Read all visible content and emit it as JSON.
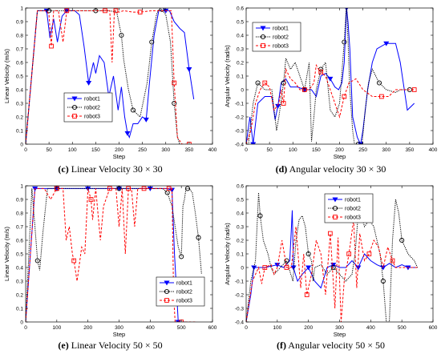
{
  "captions": [
    {
      "letter": "(c)",
      "text": "Linear Velocity 30 × 30"
    },
    {
      "letter": "(d)",
      "text": "Angular velocity 30 × 30"
    },
    {
      "letter": "(e)",
      "text": "Linear Velocity 50 × 50"
    },
    {
      "letter": "(f)",
      "text": "Angular velocity 50 × 50"
    }
  ],
  "series_styles": [
    {
      "name": "robot1",
      "color": "#0000ff",
      "marker": "triangle-down",
      "dash": "solid"
    },
    {
      "name": "robot2",
      "color": "#000000",
      "marker": "circle",
      "dash": "dotted"
    },
    {
      "name": "robot3",
      "color": "#ff0000",
      "marker": "square",
      "dash": "dashed"
    }
  ],
  "chart_data": [
    {
      "type": "line",
      "title": "",
      "xlabel": "Step",
      "ylabel": "Linear Velocity (m/s)",
      "xlim": [
        0,
        400
      ],
      "ylim": [
        0,
        1
      ],
      "xticks": [
        0,
        50,
        100,
        150,
        200,
        250,
        300,
        350,
        400
      ],
      "yticks": [
        0,
        0.1,
        0.2,
        0.3,
        0.4,
        0.5,
        0.6,
        0.7,
        0.8,
        0.9,
        1
      ],
      "legend": "bottom-left",
      "series": [
        {
          "name": "robot1",
          "x": [
            0,
            25,
            45,
            52,
            60,
            68,
            78,
            88,
            98,
            105,
            115,
            125,
            135,
            145,
            150,
            158,
            168,
            178,
            188,
            198,
            205,
            212,
            218,
            222,
            230,
            240,
            250,
            258,
            265,
            275,
            285,
            290,
            300,
            308,
            318,
            330,
            340,
            350,
            360
          ],
          "y": [
            0,
            0.98,
            0.98,
            0.78,
            0.92,
            0.75,
            0.94,
            0.98,
            0.98,
            0.98,
            0.95,
            0.72,
            0.45,
            0.6,
            0.52,
            0.65,
            0.6,
            0.35,
            0.5,
            0.25,
            0.42,
            0.2,
            0.08,
            0.05,
            0.15,
            0.15,
            0.2,
            0.18,
            0.45,
            0.8,
            0.98,
            0.98,
            0.98,
            0.98,
            0.9,
            0.85,
            0.82,
            0.55,
            0.33
          ]
        },
        {
          "name": "robot2",
          "x": [
            0,
            25,
            50,
            80,
            110,
            150,
            180,
            195,
            205,
            210,
            220,
            230,
            245,
            260,
            270,
            280,
            285,
            292,
            300,
            310,
            318,
            325,
            330
          ],
          "y": [
            0,
            0.98,
            0.98,
            0.98,
            0.98,
            0.98,
            0.98,
            0.97,
            0.8,
            0.62,
            0.4,
            0.25,
            0.2,
            0.45,
            0.75,
            0.95,
            0.99,
            0.99,
            0.95,
            0.75,
            0.3,
            0.05,
            0
          ]
        },
        {
          "name": "robot3",
          "x": [
            0,
            25,
            45,
            50,
            55,
            60,
            70,
            80,
            88,
            95,
            110,
            140,
            170,
            180,
            185,
            190,
            193,
            200,
            210,
            230,
            245,
            270,
            300,
            312,
            318,
            325,
            335,
            345,
            350
          ],
          "y": [
            0,
            0.98,
            0.98,
            0.95,
            0.72,
            0.98,
            0.98,
            0.75,
            0.98,
            0.98,
            0.98,
            0.98,
            0.98,
            0.98,
            0.6,
            0.98,
            0.98,
            0.97,
            0.98,
            0.97,
            0.97,
            0.98,
            0.98,
            0.98,
            0.45,
            0.05,
            0,
            0,
            0
          ]
        }
      ]
    },
    {
      "type": "line",
      "title": "",
      "xlabel": "Step",
      "ylabel": "Angular Velocity (rad/s)",
      "xlim": [
        0,
        400
      ],
      "ylim": [
        -0.4,
        0.6
      ],
      "xticks": [
        0,
        50,
        100,
        150,
        200,
        250,
        300,
        350,
        400
      ],
      "yticks": [
        -0.4,
        -0.3,
        -0.2,
        -0.1,
        0,
        0.1,
        0.2,
        0.3,
        0.4,
        0.5,
        0.6
      ],
      "legend": "top-left",
      "series": [
        {
          "name": "robot1",
          "x": [
            0,
            8,
            15,
            25,
            40,
            55,
            62,
            68,
            75,
            85,
            95,
            110,
            125,
            140,
            150,
            160,
            170,
            180,
            190,
            198,
            205,
            210,
            215,
            218,
            222,
            228,
            238,
            245,
            250,
            260,
            270,
            280,
            300,
            320,
            330,
            345,
            360
          ],
          "y": [
            -0.4,
            -0.2,
            -0.4,
            -0.1,
            -0.05,
            -0.05,
            -0.22,
            -0.12,
            0.05,
            0.08,
            0.02,
            0.02,
            0.0,
            0.0,
            -0.05,
            0.1,
            0.12,
            0.08,
            0.02,
            0.0,
            0.05,
            0.2,
            0.6,
            0.5,
            0.3,
            -0.2,
            -0.35,
            -0.4,
            -0.3,
            0.0,
            0.2,
            0.3,
            0.34,
            0.34,
            0.2,
            -0.15,
            -0.1
          ]
        },
        {
          "name": "robot2",
          "x": [
            0,
            5,
            15,
            25,
            40,
            55,
            65,
            70,
            80,
            85,
            95,
            105,
            115,
            125,
            135,
            140,
            145,
            150,
            160,
            170,
            180,
            190,
            200,
            210,
            215,
            222,
            228,
            232,
            240,
            248,
            255,
            262,
            270,
            285,
            300,
            320,
            330,
            340,
            350
          ],
          "y": [
            -0.4,
            -0.4,
            -0.1,
            0.05,
            0.0,
            0.0,
            -0.3,
            -0.2,
            0.05,
            0.23,
            0.15,
            0.2,
            0.1,
            0.0,
            0.2,
            -0.38,
            -0.2,
            0.0,
            0.15,
            0.2,
            -0.15,
            -0.2,
            -0.1,
            0.35,
            0.65,
            0.0,
            -0.3,
            -0.4,
            -0.4,
            -0.4,
            -0.15,
            0.05,
            0.15,
            0.05,
            0.0,
            -0.02,
            0.0,
            0.0,
            0.0
          ]
        },
        {
          "name": "robot3",
          "x": [
            0,
            10,
            20,
            30,
            40,
            50,
            60,
            70,
            75,
            80,
            85,
            95,
            105,
            115,
            125,
            135,
            145,
            150,
            155,
            160,
            170,
            180,
            190,
            200,
            210,
            220,
            235,
            250,
            270,
            290,
            305,
            320,
            340,
            350,
            360
          ],
          "y": [
            -0.4,
            -0.3,
            -0.1,
            0.0,
            0.05,
            0.02,
            -0.15,
            -0.1,
            0.0,
            -0.1,
            0.15,
            0.08,
            0.05,
            0.0,
            0.0,
            0.0,
            0.05,
            0.18,
            0.15,
            0.13,
            0.1,
            0.0,
            -0.1,
            -0.2,
            -0.05,
            0.05,
            0.08,
            0.0,
            -0.05,
            -0.05,
            -0.05,
            0.0,
            0.0,
            0.0,
            0.0
          ]
        }
      ]
    },
    {
      "type": "line",
      "title": "",
      "xlabel": "Step",
      "ylabel": "Linear Velocity (m/s)",
      "xlim": [
        0,
        600
      ],
      "ylim": [
        0,
        1
      ],
      "xticks": [
        0,
        100,
        200,
        300,
        400,
        500,
        600
      ],
      "yticks": [
        0,
        0.1,
        0.2,
        0.3,
        0.4,
        0.5,
        0.6,
        0.7,
        0.8,
        0.9,
        1
      ],
      "legend": "bottom-right",
      "series": [
        {
          "name": "robot1",
          "x": [
            0,
            30,
            60,
            100,
            150,
            200,
            250,
            300,
            350,
            400,
            450,
            470,
            478,
            490,
            520
          ],
          "y": [
            0,
            0.98,
            0.98,
            0.98,
            0.98,
            0.98,
            0.98,
            0.98,
            0.98,
            0.98,
            0.98,
            0.97,
            0.5,
            0,
            0
          ]
        },
        {
          "name": "robot2",
          "x": [
            0,
            20,
            30,
            38,
            45,
            55,
            70,
            100,
            150,
            200,
            250,
            300,
            350,
            400,
            440,
            455,
            470,
            480,
            490,
            500,
            505,
            510,
            515,
            520,
            525,
            535,
            545,
            555,
            565
          ],
          "y": [
            0,
            0.98,
            0.7,
            0.45,
            0.38,
            0.65,
            0.98,
            0.98,
            0.98,
            0.98,
            0.98,
            0.98,
            0.98,
            0.98,
            0.98,
            0.95,
            0.85,
            0.7,
            0.55,
            0.48,
            0.85,
            0.9,
            0.98,
            0.98,
            0.98,
            0.95,
            0.8,
            0.62,
            0.35
          ]
        },
        {
          "name": "robot3",
          "x": [
            0,
            30,
            60,
            80,
            100,
            120,
            130,
            140,
            150,
            155,
            165,
            180,
            190,
            200,
            210,
            215,
            225,
            240,
            250,
            270,
            290,
            300,
            310,
            320,
            330,
            340,
            350,
            360,
            370,
            380,
            390,
            400,
            420,
            440,
            460,
            470,
            475,
            480,
            490,
            500,
            550
          ],
          "y": [
            0,
            0.98,
            0.98,
            0.9,
            0.98,
            0.98,
            0.6,
            0.7,
            0.5,
            0.45,
            0.3,
            0.55,
            0.5,
            0.98,
            0.9,
            0.75,
            0.98,
            0.6,
            0.85,
            0.98,
            0.98,
            0.7,
            0.98,
            0.5,
            0.98,
            0.98,
            0.7,
            0.98,
            0.98,
            0.98,
            0.98,
            0.98,
            0.98,
            0.98,
            0.98,
            0.98,
            0.2,
            0,
            0,
            0,
            0
          ]
        }
      ]
    },
    {
      "type": "line",
      "title": "",
      "xlabel": "Step",
      "ylabel": "Angular Velocity (rad/s)",
      "xlim": [
        0,
        600
      ],
      "ylim": [
        -0.4,
        0.6
      ],
      "xticks": [
        0,
        100,
        200,
        300,
        400,
        500,
        600
      ],
      "yticks": [
        -0.4,
        -0.3,
        -0.2,
        -0.1,
        0,
        0.1,
        0.2,
        0.3,
        0.4,
        0.5,
        0.6
      ],
      "legend": "top-right",
      "series": [
        {
          "name": "robot1",
          "x": [
            0,
            15,
            25,
            40,
            60,
            80,
            100,
            120,
            140,
            148,
            152,
            158,
            165,
            180,
            200,
            220,
            240,
            260,
            280,
            300,
            320,
            340,
            360,
            380,
            400,
            420,
            440,
            460,
            480,
            500,
            520,
            550
          ],
          "y": [
            -0.4,
            -0.2,
            0.0,
            0.0,
            0.0,
            0.01,
            0.02,
            0.0,
            0.05,
            0.42,
            0.0,
            -0.05,
            -0.1,
            -0.05,
            0.0,
            -0.1,
            -0.15,
            0.0,
            0.02,
            0.0,
            0.0,
            0.05,
            0.0,
            0.1,
            0.05,
            0.02,
            0.0,
            0.03,
            0.0,
            0.02,
            0.0,
            0.0
          ]
        },
        {
          "name": "robot2",
          "x": [
            0,
            15,
            30,
            40,
            45,
            55,
            70,
            80,
            90,
            110,
            130,
            150,
            160,
            170,
            180,
            190,
            200,
            210,
            215,
            220,
            240,
            260,
            280,
            300,
            320,
            340,
            350,
            360,
            370,
            380,
            395,
            410,
            420,
            430,
            440,
            450,
            460,
            470,
            480,
            490,
            500,
            520,
            540,
            550
          ],
          "y": [
            -0.4,
            -0.1,
            0.05,
            0.55,
            0.38,
            0.2,
            0.1,
            0.0,
            -0.05,
            0.0,
            0.05,
            -0.1,
            0.2,
            0.35,
            0.38,
            0.3,
            0.1,
            0.05,
            -0.1,
            0.0,
            0.02,
            -0.05,
            0.0,
            -0.05,
            -0.1,
            -0.05,
            0.1,
            0.4,
            0.38,
            0.3,
            0.35,
            0.3,
            0.2,
            0.1,
            -0.1,
            -0.4,
            -0.4,
            0.2,
            0.5,
            0.4,
            0.2,
            0.1,
            0.05,
            0.0
          ]
        },
        {
          "name": "robot3",
          "x": [
            0,
            20,
            40,
            50,
            60,
            80,
            90,
            100,
            115,
            130,
            145,
            160,
            175,
            185,
            195,
            210,
            225,
            240,
            255,
            270,
            285,
            295,
            305,
            315,
            330,
            345,
            355,
            365,
            380,
            395,
            410,
            425,
            440,
            455,
            470,
            480,
            500,
            530,
            550
          ],
          "y": [
            -0.4,
            -0.1,
            0.0,
            -0.12,
            0.0,
            0.02,
            -0.05,
            0.0,
            0.2,
            0.0,
            0.0,
            0.3,
            -0.15,
            0.1,
            -0.2,
            -0.05,
            0.2,
            0.1,
            -0.2,
            0.25,
            -0.3,
            0.22,
            -0.4,
            -0.1,
            0.1,
            0.35,
            -0.15,
            0.25,
            0.05,
            0.1,
            0.2,
            0.15,
            0.0,
            0.15,
            0.05,
            0.0,
            0.0,
            0.0,
            0.0
          ]
        }
      ]
    }
  ]
}
